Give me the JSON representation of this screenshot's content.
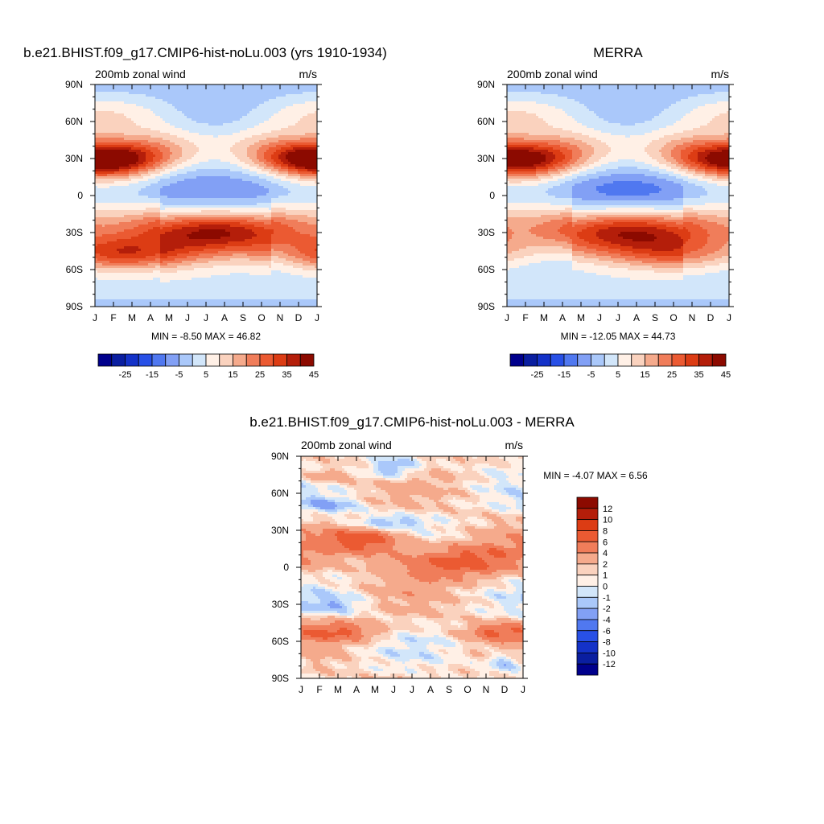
{
  "palette_abs": [
    "#00008c",
    "#0a1ea0",
    "#1432c8",
    "#2850e6",
    "#5078f0",
    "#82a0f5",
    "#aac8fa",
    "#d2e6fa",
    "#fff0e6",
    "#fad2be",
    "#f5aa8c",
    "#f07d5a",
    "#eb5a32",
    "#dc3c14",
    "#b41e0a",
    "#8c0a00"
  ],
  "palette_diff": [
    "#00008c",
    "#0a1ea0",
    "#1432c8",
    "#2850e6",
    "#5078f0",
    "#82a0f5",
    "#aac8fa",
    "#d2e6fa",
    "#fff0e6",
    "#fad2be",
    "#f5aa8c",
    "#f07d5a",
    "#eb5a32",
    "#dc3c14",
    "#b41e0a",
    "#8c0a00"
  ],
  "chart_data": [
    {
      "type": "heatmap",
      "title": "b.e21.BHIST.f09_g17.CMIP6-hist-noLu.003 (yrs 1910-1934)",
      "left_label": "200mb zonal wind",
      "right_label": "m/s",
      "stats": "MIN =  -8.50 MAX =  46.82",
      "x_tick_labels": [
        "J",
        "F",
        "M",
        "A",
        "M",
        "J",
        "J",
        "A",
        "S",
        "O",
        "N",
        "D",
        "J"
      ],
      "y_tick_labels": [
        "90N",
        "60N",
        "30N",
        "0",
        "30S",
        "60S",
        "90S"
      ],
      "ylim": [
        -90,
        90
      ],
      "colorbar_labels": [
        "-25",
        "-15",
        "-5",
        "5",
        "15",
        "25",
        "35",
        "45"
      ],
      "features": [
        {
          "lat": 28,
          "month": 0.3,
          "value": 46.8,
          "lat_width": 8,
          "month_width": 2.3
        },
        {
          "lat": 30,
          "month": 12.0,
          "value": 44,
          "lat_width": 8,
          "month_width": 1.8
        },
        {
          "lat": -28,
          "month": 6.5,
          "value": 40,
          "lat_width": 9,
          "month_width": 2.6
        },
        {
          "lat": -48,
          "month": 1.5,
          "value": 34,
          "lat_width": 10,
          "month_width": 2.4
        },
        {
          "lat": 5,
          "month": 6.8,
          "value": -8.5,
          "lat_width": 9,
          "month_width": 2.2
        }
      ]
    },
    {
      "type": "heatmap",
      "title": "MERRA",
      "left_label": "200mb zonal wind",
      "right_label": "m/s",
      "stats": "MIN = -12.05 MAX =  44.73",
      "x_tick_labels": [
        "J",
        "F",
        "M",
        "A",
        "M",
        "J",
        "J",
        "A",
        "S",
        "O",
        "N",
        "D",
        "J"
      ],
      "y_tick_labels": [
        "90N",
        "60N",
        "30N",
        "0",
        "30S",
        "60S",
        "90S"
      ],
      "ylim": [
        -90,
        90
      ],
      "colorbar_labels": [
        "-25",
        "-15",
        "-5",
        "5",
        "15",
        "25",
        "35",
        "45"
      ],
      "features": [
        {
          "lat": 28,
          "month": 0.5,
          "value": 44.7,
          "lat_width": 8,
          "month_width": 2.3
        },
        {
          "lat": 30,
          "month": 12.0,
          "value": 40,
          "lat_width": 8,
          "month_width": 1.8
        },
        {
          "lat": -28,
          "month": 6.7,
          "value": 38,
          "lat_width": 9,
          "month_width": 2.6
        },
        {
          "lat": -48,
          "month": 9.5,
          "value": 30,
          "lat_width": 10,
          "month_width": 2.4
        },
        {
          "lat": 5,
          "month": 6.9,
          "value": -12.05,
          "lat_width": 9,
          "month_width": 2.2
        }
      ]
    },
    {
      "type": "heatmap",
      "title": "b.e21.BHIST.f09_g17.CMIP6-hist-noLu.003 - MERRA",
      "left_label": "200mb zonal wind",
      "right_label": "m/s",
      "stats": "MIN =  -4.07 MAX =   6.56",
      "x_tick_labels": [
        "J",
        "F",
        "M",
        "A",
        "M",
        "J",
        "J",
        "A",
        "S",
        "O",
        "N",
        "D",
        "J"
      ],
      "y_tick_labels": [
        "90N",
        "60N",
        "30N",
        "0",
        "30S",
        "60S",
        "90S"
      ],
      "ylim": [
        -90,
        90
      ],
      "colorbar_labels": [
        "12",
        "10",
        "8",
        "6",
        "4",
        "2",
        "1",
        "0",
        "-1",
        "-2",
        "-4",
        "-6",
        "-8",
        "-10",
        "-12"
      ],
      "features": [
        {
          "lat": 22,
          "month": 3.5,
          "value": 6.5,
          "lat_width": 8,
          "month_width": 1.6
        },
        {
          "lat": 5,
          "month": 8.5,
          "value": 6,
          "lat_width": 10,
          "month_width": 2.5
        },
        {
          "lat": -52,
          "month": 2.2,
          "value": 5,
          "lat_width": 6,
          "month_width": 1.5
        },
        {
          "lat": -52,
          "month": 10.5,
          "value": 4.5,
          "lat_width": 5,
          "month_width": 1.2
        },
        {
          "lat": 80,
          "month": 5.0,
          "value": -4,
          "lat_width": 6,
          "month_width": 1.0
        },
        {
          "lat": 36,
          "month": 4.5,
          "value": -3.5,
          "lat_width": 4,
          "month_width": 1.4
        },
        {
          "lat": -77,
          "month": 11.0,
          "value": -3.5,
          "lat_width": 6,
          "month_width": 0.8
        },
        {
          "lat": -30,
          "month": 2.0,
          "value": -2.5,
          "lat_width": 5,
          "month_width": 1.2
        },
        {
          "lat": 50,
          "month": 1.5,
          "value": -3,
          "lat_width": 5,
          "month_width": 1.2
        },
        {
          "lat": 74,
          "month": 1.3,
          "value": 3,
          "lat_width": 5,
          "month_width": 0.9
        }
      ]
    }
  ]
}
